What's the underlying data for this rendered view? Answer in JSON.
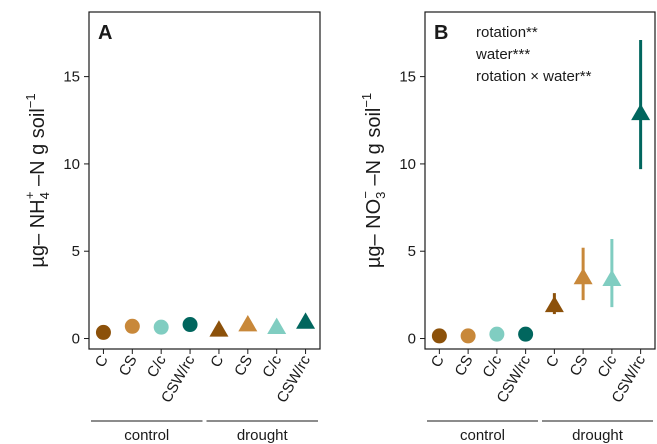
{
  "colors": {
    "C": "#8c510a",
    "CS": "#c8883a",
    "C/c": "#80cdc1",
    "CSW/rc": "#01665e"
  },
  "chart_data": [
    {
      "type": "scatter",
      "panel_label": "A",
      "ylabel_prefix": "µg– NH",
      "ylabel_sub": "4",
      "ylabel_sup": "+",
      "ylabel_mid": " –N g soil",
      "ylabel_end_sup": "−1",
      "ylim": [
        -0.6,
        18.7
      ],
      "yticks": [
        0,
        5,
        10,
        15
      ],
      "categories": [
        "C",
        "CS",
        "C/c",
        "CSW/rc",
        "C",
        "CS",
        "C/c",
        "CSW/rc"
      ],
      "groups": [
        {
          "label": "control",
          "from": 0,
          "to": 3
        },
        {
          "label": "drought",
          "from": 4,
          "to": 7
        }
      ],
      "points": [
        {
          "rotation": "C",
          "water": "control",
          "y": 0.35,
          "ymin": null,
          "ymax": null
        },
        {
          "rotation": "CS",
          "water": "control",
          "y": 0.7,
          "ymin": null,
          "ymax": null
        },
        {
          "rotation": "C/c",
          "water": "control",
          "y": 0.65,
          "ymin": null,
          "ymax": null
        },
        {
          "rotation": "CSW/rc",
          "water": "control",
          "y": 0.8,
          "ymin": null,
          "ymax": null
        },
        {
          "rotation": "C",
          "water": "drought",
          "y": 0.5,
          "ymin": null,
          "ymax": null
        },
        {
          "rotation": "CS",
          "water": "drought",
          "y": 0.8,
          "ymin": null,
          "ymax": null
        },
        {
          "rotation": "C/c",
          "water": "drought",
          "y": 0.65,
          "ymin": null,
          "ymax": null
        },
        {
          "rotation": "CSW/rc",
          "water": "drought",
          "y": 0.95,
          "ymin": null,
          "ymax": null
        }
      ],
      "annotations": []
    },
    {
      "type": "scatter",
      "panel_label": "B",
      "ylabel_prefix": "µg– NO",
      "ylabel_sub": "3",
      "ylabel_sup": "−",
      "ylabel_mid": " –N g soil",
      "ylabel_end_sup": "−1",
      "ylim": [
        -0.6,
        18.7
      ],
      "yticks": [
        0,
        5,
        10,
        15
      ],
      "categories": [
        "C",
        "CS",
        "C/c",
        "CSW/rc",
        "C",
        "CS",
        "C/c",
        "CSW/rc"
      ],
      "groups": [
        {
          "label": "control",
          "from": 0,
          "to": 3
        },
        {
          "label": "drought",
          "from": 4,
          "to": 7
        }
      ],
      "points": [
        {
          "rotation": "C",
          "water": "control",
          "y": 0.15,
          "ymin": null,
          "ymax": null
        },
        {
          "rotation": "CS",
          "water": "control",
          "y": 0.15,
          "ymin": null,
          "ymax": null
        },
        {
          "rotation": "C/c",
          "water": "control",
          "y": 0.25,
          "ymin": null,
          "ymax": null
        },
        {
          "rotation": "CSW/rc",
          "water": "control",
          "y": 0.25,
          "ymin": null,
          "ymax": null
        },
        {
          "rotation": "C",
          "water": "drought",
          "y": 1.9,
          "ymin": 1.4,
          "ymax": 2.6
        },
        {
          "rotation": "CS",
          "water": "drought",
          "y": 3.5,
          "ymin": 2.2,
          "ymax": 5.2
        },
        {
          "rotation": "C/c",
          "water": "drought",
          "y": 3.4,
          "ymin": 1.8,
          "ymax": 5.7
        },
        {
          "rotation": "CSW/rc",
          "water": "drought",
          "y": 12.9,
          "ymin": 9.7,
          "ymax": 17.1
        }
      ],
      "annotations": [
        "rotation**",
        "water***",
        "rotation × water**"
      ]
    }
  ]
}
